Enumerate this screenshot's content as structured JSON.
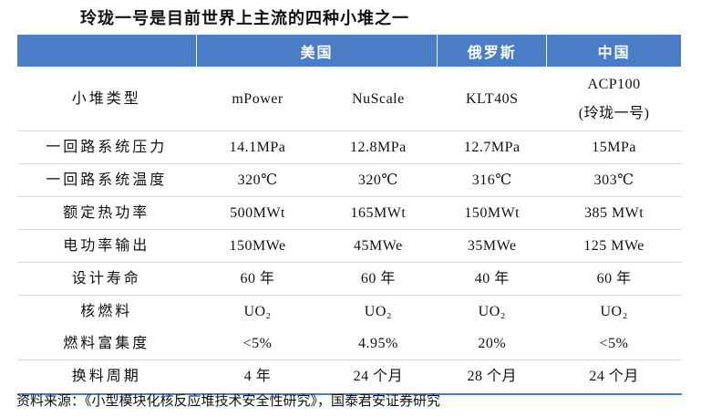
{
  "header": {
    "title": "玲珑一号是目前世界上主流的四种小堆之一"
  },
  "table": {
    "columns": [
      "美国",
      "俄罗斯",
      "中国"
    ],
    "rows": [
      [
        "小堆类型",
        "mPower",
        "NuScale",
        "KLT40S",
        "ACP100\n(玲珑一号)"
      ],
      [
        "一回路系统压力",
        "14.1MPa",
        "12.8MPa",
        "12.7MPa",
        "15MPa"
      ],
      [
        "一回路系统温度",
        "320℃",
        "320℃",
        "316℃",
        "303℃"
      ],
      [
        "额定热功率",
        "500MWt",
        "165MWt",
        "150MWt",
        "385 MWt"
      ],
      [
        "电功率输出",
        "150MWe",
        "45MWe",
        "35MWe",
        "125 MWe"
      ],
      [
        "设计寿命",
        "60 年",
        "60 年",
        "40 年",
        "60 年"
      ],
      [
        "核燃料",
        "UO₂",
        "UO₂",
        "UO₂",
        "UO₂"
      ],
      [
        "燃料富集度",
        "<5%",
        "4.95%",
        "20%",
        "<5%"
      ],
      [
        "换料周期",
        "4 年",
        "24 个月",
        "28 个月",
        "24 个月"
      ]
    ]
  },
  "footer": {
    "source": "资料来源：《小型模块化核反应堆技术安全性研究》，国泰君安证券研究"
  }
}
